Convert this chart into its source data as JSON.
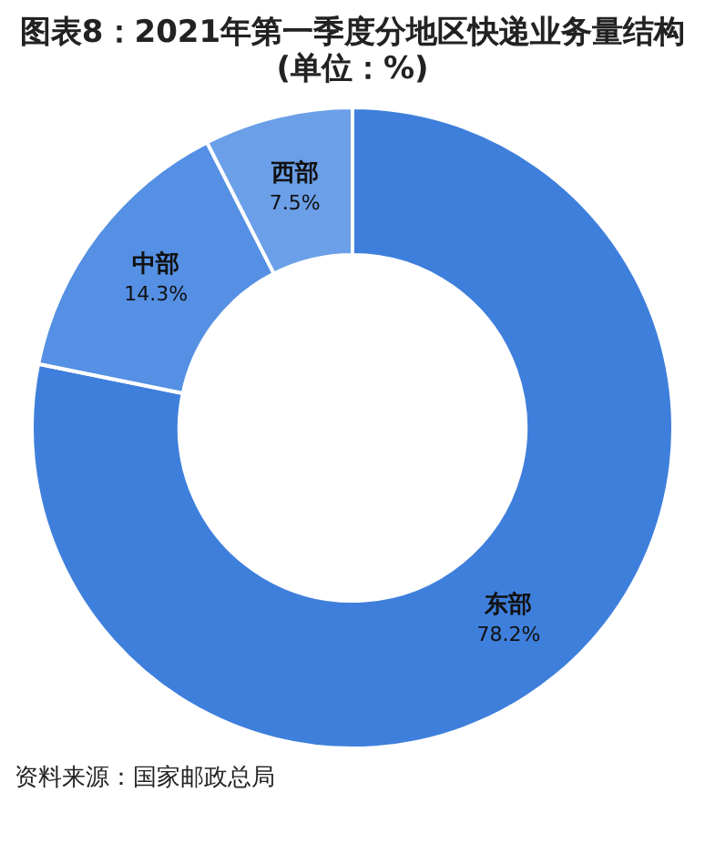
{
  "chart_data": {
    "type": "donut",
    "title": "图表8：2021年第一季度分地区快递业务量结构",
    "subtitle": "(单位：%)",
    "categories": [
      "东部",
      "中部",
      "西部"
    ],
    "values": [
      78.2,
      14.3,
      7.5
    ],
    "colors": [
      "#3f7fdc",
      "#5590e4",
      "#6b9fe8"
    ],
    "value_labels": [
      "78.2%",
      "14.3%",
      "7.5%"
    ],
    "legend": false,
    "annotations": [
      "资料来源：国家邮政总局"
    ]
  }
}
